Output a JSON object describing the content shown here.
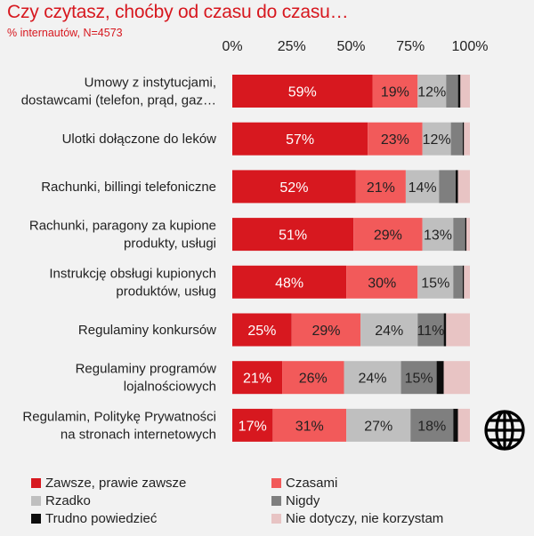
{
  "title": "Czy czytasz, choćby od czasu do czasu…",
  "subtitle": "% internautów, N=4573",
  "chart_data": {
    "type": "bar",
    "orientation": "horizontal",
    "stacked": true,
    "title": "Czy czytasz, choćby od czasu do czasu…",
    "subtitle": "% internautów, N=4573",
    "xlim": [
      0,
      100
    ],
    "xticks": [
      "0%",
      "25%",
      "50%",
      "75%",
      "100%"
    ],
    "tick_values": [
      0,
      25,
      50,
      75,
      100
    ],
    "categories": [
      [
        "Umowy z instytucjami,",
        "dostawcami (telefon, prąd, gaz…"
      ],
      [
        "Ulotki dołączone do leków"
      ],
      [
        "Rachunki, billingi telefoniczne"
      ],
      [
        "Rachunki, paragony za kupione",
        "produkty, usługi"
      ],
      [
        "Instrukcję obsługi kupionych",
        "produktów, usług"
      ],
      [
        "Regulaminy konkursów"
      ],
      [
        "Regulaminy programów",
        "lojalnościowych"
      ],
      [
        "Regulamin, Politykę Prywatności",
        "na stronach  internetowych"
      ]
    ],
    "series": [
      {
        "name": "Zawsze, prawie zawsze",
        "color": "#d7181f",
        "label_color": "#ffffff",
        "values": [
          59,
          57,
          52,
          51,
          48,
          25,
          21,
          17
        ],
        "labels": [
          "59%",
          "57%",
          "52%",
          "51%",
          "48%",
          "25%",
          "21%",
          "17%"
        ]
      },
      {
        "name": "Czasami",
        "color": "#f25a5a",
        "label_color": "#222222",
        "values": [
          19,
          23,
          21,
          29,
          30,
          29,
          26,
          31
        ],
        "labels": [
          "19%",
          "23%",
          "21%",
          "29%",
          "30%",
          "29%",
          "26%",
          "31%"
        ]
      },
      {
        "name": "Rzadko",
        "color": "#bfbfbf",
        "label_color": "#222222",
        "values": [
          12,
          12,
          14,
          13,
          15,
          24,
          24,
          27
        ],
        "labels": [
          "12%",
          "12%",
          "14%",
          "13%",
          "15%",
          "24%",
          "24%",
          "27%"
        ]
      },
      {
        "name": "Nigdy",
        "color": "#7f7f7f",
        "label_color": "#222222",
        "values": [
          5,
          5,
          7,
          5,
          4,
          11,
          15,
          18
        ],
        "labels": [
          "",
          "",
          "",
          "",
          "",
          "11%",
          "15%",
          "18%"
        ]
      },
      {
        "name": "Trudno powiedzieć",
        "color": "#0d0d0d",
        "label_color": "#ffffff",
        "values": [
          1,
          0.5,
          1,
          0.5,
          0.5,
          1,
          3,
          2
        ],
        "labels": [
          "",
          "",
          "",
          "",
          "",
          "",
          "",
          ""
        ]
      },
      {
        "name": "Nie dotyczy, nie korzystam",
        "color": "#e8c4c4",
        "label_color": "#222222",
        "values": [
          4,
          2.5,
          5,
          1.5,
          2.5,
          10,
          11,
          5
        ],
        "labels": [
          "",
          "",
          "",
          "",
          "",
          "",
          "",
          ""
        ]
      }
    ]
  },
  "icons": {
    "globe": "globe-icon"
  }
}
